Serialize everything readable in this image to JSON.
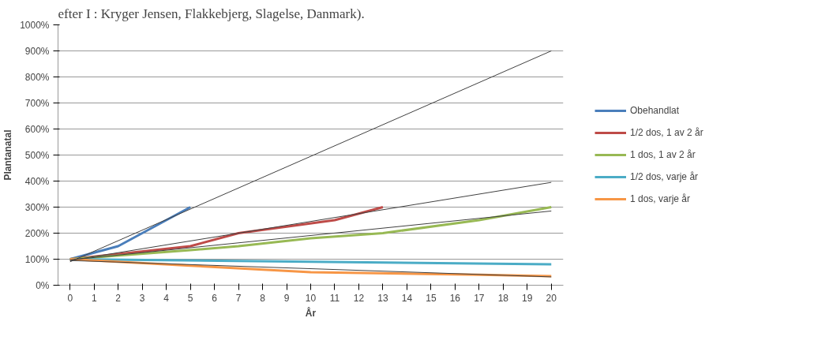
{
  "chart_data": {
    "type": "line",
    "annotations": [
      "efter I : Kryger Jensen, Flakkebjerg, Slagelse, Danmark)."
    ],
    "xlabel": "År",
    "ylabel": "Plantanatal",
    "xlim": [
      -0.5,
      20.5
    ],
    "xticks": [
      0,
      1,
      2,
      3,
      4,
      5,
      6,
      7,
      8,
      9,
      10,
      11,
      12,
      13,
      14,
      15,
      16,
      17,
      18,
      19,
      20
    ],
    "ylim": [
      0,
      1000
    ],
    "yticks": [
      {
        "value": 0,
        "label": "0%"
      },
      {
        "value": 100,
        "label": "100%"
      },
      {
        "value": 200,
        "label": "200%"
      },
      {
        "value": 300,
        "label": "300%"
      },
      {
        "value": 400,
        "label": "400%"
      },
      {
        "value": 500,
        "label": "500%"
      },
      {
        "value": 600,
        "label": "600%"
      },
      {
        "value": 700,
        "label": "700%"
      },
      {
        "value": 800,
        "label": "800%"
      },
      {
        "value": 900,
        "label": "900%"
      },
      {
        "value": 1000,
        "label": "1000%"
      }
    ],
    "grid": "y",
    "legend": "right",
    "series": [
      {
        "type": "line",
        "color": "#404040",
        "x": [
          0,
          20
        ],
        "values": [
          90,
          900
        ]
      },
      {
        "type": "line",
        "color": "#404040",
        "x": [
          0,
          20
        ],
        "values": [
          95,
          395
        ]
      },
      {
        "type": "line",
        "color": "#404040",
        "x": [
          0,
          20
        ],
        "values": [
          97,
          285
        ]
      },
      {
        "type": "line",
        "color": "#404040",
        "x": [
          0,
          20
        ],
        "values": [
          95,
          32
        ]
      },
      {
        "name": "Obehandlat",
        "color": "#4a7ebb",
        "x": [
          0,
          2,
          5
        ],
        "values": [
          100,
          150,
          300
        ]
      },
      {
        "name": "1/2 dos, 1 av 2 år",
        "color": "#be4b48",
        "x": [
          0,
          2,
          5,
          7,
          11,
          13
        ],
        "values": [
          100,
          120,
          150,
          200,
          250,
          300
        ]
      },
      {
        "name": "1 dos, 1 av 2 år",
        "color": "#98b954",
        "x": [
          0,
          5,
          7,
          10,
          13,
          17,
          20
        ],
        "values": [
          100,
          135,
          150,
          180,
          200,
          250,
          300
        ]
      },
      {
        "name": "1/2 dos, varje år",
        "color": "#4bacc6",
        "x": [
          0,
          20
        ],
        "values": [
          100,
          80
        ]
      },
      {
        "name": "1 dos, varje år",
        "color": "#f79646",
        "x": [
          0,
          5,
          10,
          17,
          20
        ],
        "values": [
          100,
          75,
          50,
          40,
          35
        ]
      }
    ]
  }
}
